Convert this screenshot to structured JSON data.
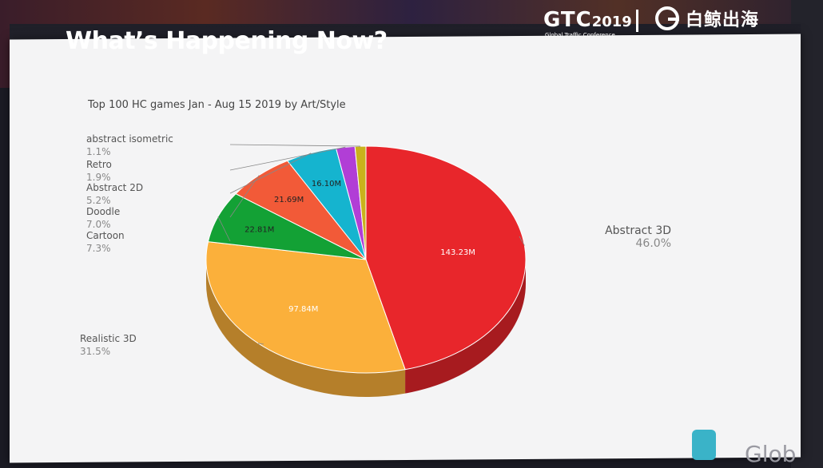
{
  "slide": {
    "title": "What’s Happening Now?",
    "gtc_logo": "GTC",
    "gtc_year": "2019",
    "gtc_subtitle": "Global Traffic Conference",
    "partner_logo": "白鲸出海",
    "watermark_text": "Glob"
  },
  "chart_data": {
    "type": "pie",
    "title": "Top 100 HC games Jan - Aug 15 2019 by Art/Style",
    "slices": [
      {
        "label": "Abstract 3D",
        "value": 143.23,
        "value_label": "143.23M",
        "percent_label": "46.0%",
        "color": "#e8262b"
      },
      {
        "label": "Realistic 3D",
        "value": 97.84,
        "value_label": "97.84M",
        "percent_label": "31.5%",
        "color": "#fbb03b"
      },
      {
        "label": "Cartoon",
        "value": 22.81,
        "value_label": "22.81M",
        "percent_label": "7.3%",
        "color": "#13a135"
      },
      {
        "label": "Doodle",
        "value": 21.69,
        "value_label": "21.69M",
        "percent_label": "7.0%",
        "color": "#f25a38"
      },
      {
        "label": "Abstract 2D",
        "value": 16.1,
        "value_label": "16.10M",
        "percent_label": "5.2%",
        "color": "#15b4cf"
      },
      {
        "label": "Retro",
        "value": 5.91,
        "value_label": "",
        "percent_label": "1.9%",
        "color": "#b13ed6"
      },
      {
        "label": "abstract isometric",
        "value": 3.42,
        "value_label": "",
        "percent_label": "1.1%",
        "color": "#c9b21c"
      }
    ]
  }
}
